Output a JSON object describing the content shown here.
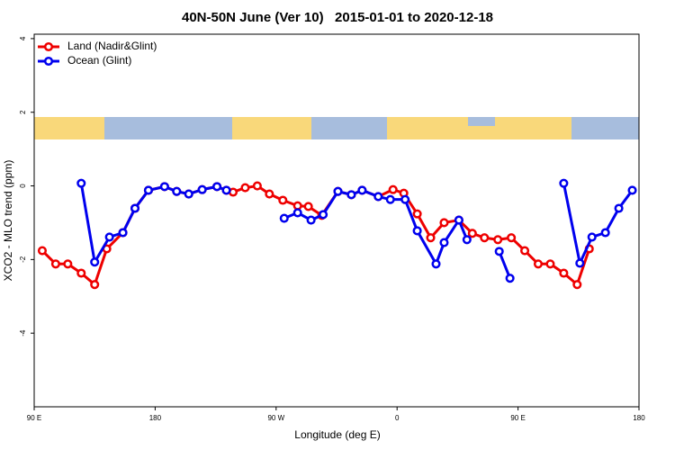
{
  "chart_data": {
    "type": "line",
    "title": "40N-50N June (Ver 10)   2015-01-01 to 2020-12-18",
    "x_label": "Longitude (deg E)",
    "y_label": "XCO2 - MLO trend (ppm)",
    "xlim": [
      90,
      540
    ],
    "ylim": [
      -6,
      4.12
    ],
    "xticks": [
      {
        "value": 90,
        "label": "90 E"
      },
      180,
      {
        "value": 270,
        "label": "90 W"
      },
      {
        "value": 360,
        "label": "0"
      },
      {
        "value": 450,
        "label": "90 E"
      },
      {
        "value": 540,
        "label": "180"
      }
    ],
    "yticks": [
      -4,
      -2,
      0,
      2,
      4
    ],
    "legend": "top-left",
    "series": [
      {
        "name": "Land (Nadir&Glint)",
        "color": "#ee0000",
        "x": [
          96,
          106,
          115,
          125,
          135,
          144,
          156,
          165,
          175,
          187,
          196,
          205,
          215,
          226,
          233,
          238,
          247,
          256,
          265,
          275,
          286,
          294,
          304,
          316,
          326,
          334,
          346,
          357,
          365,
          375,
          385,
          395,
          406,
          416,
          425,
          435,
          445,
          455,
          465,
          474,
          484,
          494,
          503
        ],
        "values": [
          -1.76,
          -2.12,
          -2.12,
          -2.37,
          -2.68,
          -1.71,
          -1.27,
          -0.61,
          -0.12,
          -0.02,
          -0.15,
          -0.22,
          -0.1,
          -0.02,
          -0.12,
          -0.17,
          -0.05,
          0,
          -0.22,
          -0.39,
          -0.54,
          -0.56,
          -0.8,
          -0.15,
          -0.24,
          -0.12,
          -0.29,
          -0.1,
          -0.2,
          -0.76,
          -1.41,
          -1.0,
          -0.93,
          -1.29,
          -1.41,
          -1.46,
          -1.41,
          -1.76,
          -2.12,
          -2.12,
          -2.37,
          -2.68,
          -1.71
        ]
      },
      {
        "name": "Ocean (Glint)",
        "color": "#0000ee",
        "x": [
          125,
          135,
          146,
          156,
          165,
          175,
          187,
          196,
          205,
          215,
          226,
          233,
          255,
          276,
          286,
          296,
          305,
          316,
          326,
          334,
          346,
          355,
          366,
          375,
          389,
          395,
          406,
          412,
          420,
          436,
          444,
          470,
          484,
          496,
          505,
          515,
          525,
          535
        ],
        "values": [
          0.07,
          -2.07,
          -1.39,
          -1.27,
          -0.61,
          -0.12,
          -0.02,
          -0.15,
          -0.22,
          -0.1,
          -0.02,
          -0.12,
          null,
          -0.88,
          -0.73,
          -0.93,
          -0.78,
          -0.15,
          -0.24,
          -0.12,
          -0.29,
          -0.37,
          -0.37,
          -1.22,
          -2.12,
          -1.54,
          -0.93,
          -1.46,
          null,
          -1.78,
          -2.51,
          null,
          0.07,
          -2.1,
          -1.39,
          -1.27,
          -0.61,
          -0.12
        ]
      }
    ]
  }
}
